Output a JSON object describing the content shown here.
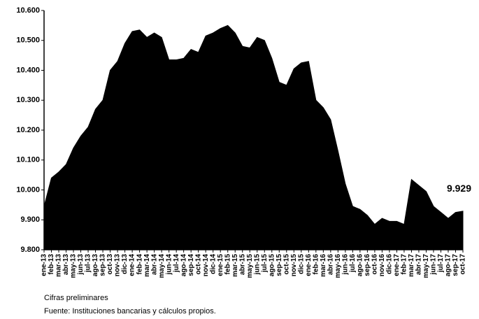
{
  "chart_data": {
    "type": "area",
    "color": "#000000",
    "categories": [
      "ene-13",
      "feb-13",
      "mar-13",
      "abr-13",
      "may-13",
      "jun-13",
      "jul-13",
      "ago-13",
      "sep-13",
      "oct-13",
      "nov-13",
      "dic-13",
      "ene-14",
      "feb-14",
      "mar-14",
      "abr-14",
      "may-14",
      "jun-14",
      "jul-14",
      "ago-14",
      "sep-14",
      "oct-14",
      "nov-14",
      "dic-14",
      "ene-15",
      "feb-15",
      "mar-15",
      "abr-15",
      "may-15",
      "jun-15",
      "jul-15",
      "ago-15",
      "sep-15",
      "oct-15",
      "nov-15",
      "dic-15",
      "ene-16",
      "feb-16",
      "mar-16",
      "abr-16",
      "may-16",
      "jun-16",
      "jul-16",
      "ago-16",
      "sep-16",
      "oct-16",
      "nov-16",
      "dic-16",
      "ene-17",
      "feb-17",
      "mar-17",
      "abr-17",
      "may-17",
      "jun-17",
      "jul-17",
      "ago-17",
      "sep-17",
      "oct-17"
    ],
    "values": [
      9945,
      10040,
      10060,
      10085,
      10140,
      10180,
      10210,
      10270,
      10300,
      10400,
      10430,
      10490,
      10530,
      10535,
      10510,
      10525,
      10510,
      10435,
      10435,
      10440,
      10470,
      10460,
      10515,
      10525,
      10540,
      10550,
      10525,
      10480,
      10475,
      10510,
      10500,
      10440,
      10360,
      10350,
      10405,
      10425,
      10430,
      10300,
      10275,
      10235,
      10130,
      10020,
      9945,
      9935,
      9915,
      9885,
      9905,
      9895,
      9895,
      9885,
      10035,
      10015,
      9995,
      9945,
      9925,
      9905,
      9925,
      9929
    ],
    "value_labels": [
      null,
      null,
      null,
      null,
      null,
      null,
      null,
      null,
      null,
      null,
      null,
      null,
      null,
      null,
      null,
      null,
      null,
      null,
      null,
      null,
      null,
      null,
      null,
      null,
      null,
      null,
      null,
      null,
      null,
      null,
      null,
      null,
      null,
      null,
      null,
      null,
      null,
      null,
      null,
      null,
      null,
      null,
      null,
      null,
      null,
      null,
      null,
      null,
      null,
      null,
      null,
      null,
      null,
      null,
      null,
      null,
      null,
      "9.929"
    ],
    "ylim": [
      9800,
      10600
    ],
    "yticks": [
      {
        "value": 9800,
        "label": "9.800"
      },
      {
        "value": 9900,
        "label": "9.900"
      },
      {
        "value": 10000,
        "label": "10.000"
      },
      {
        "value": 10100,
        "label": "10.100"
      },
      {
        "value": 10200,
        "label": "10.200"
      },
      {
        "value": 10300,
        "label": "10.300"
      },
      {
        "value": 10400,
        "label": "10.400"
      },
      {
        "value": 10500,
        "label": "10.500"
      },
      {
        "value": 10600,
        "label": "10.600"
      }
    ],
    "notes": [
      "Cifras preliminares",
      "Fuente: Instituciones bancarias y cálculos propios."
    ]
  }
}
